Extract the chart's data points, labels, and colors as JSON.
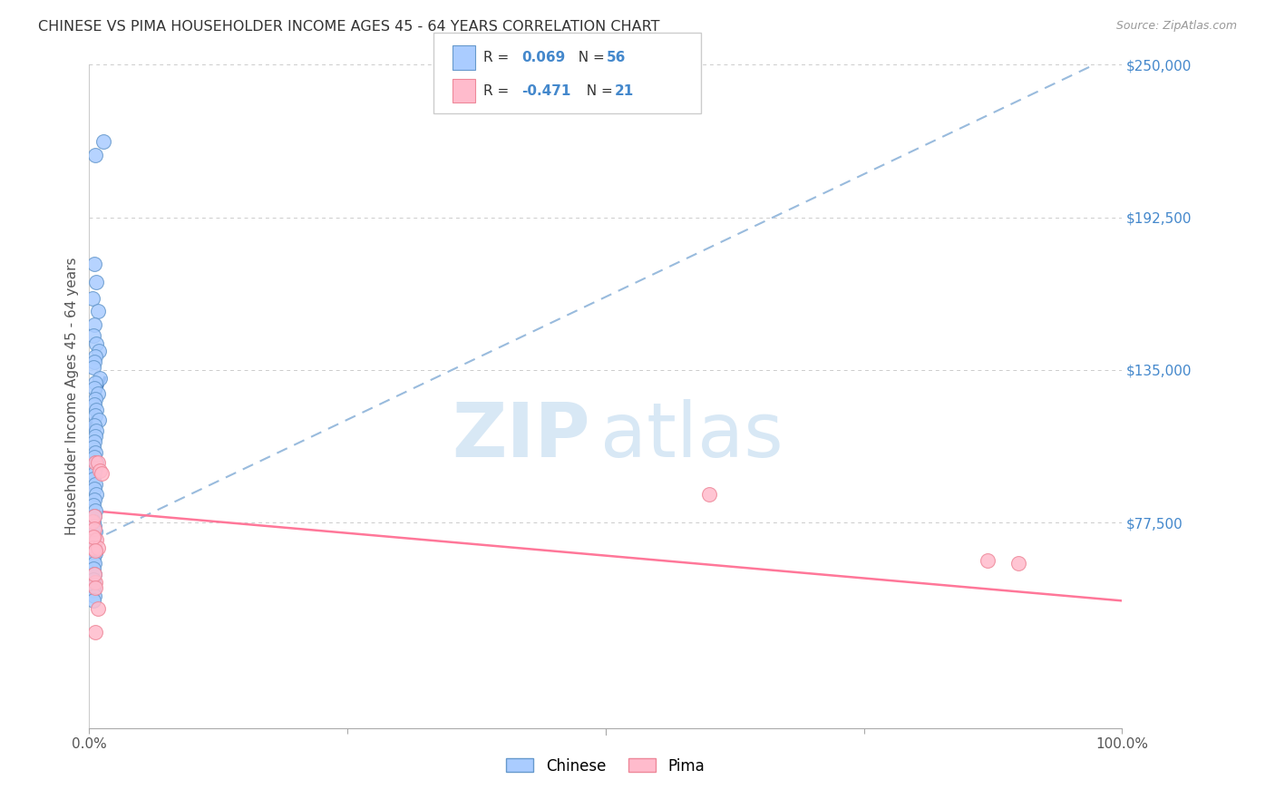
{
  "title": "CHINESE VS PIMA HOUSEHOLDER INCOME AGES 45 - 64 YEARS CORRELATION CHART",
  "source": "Source: ZipAtlas.com",
  "ylabel": "Householder Income Ages 45 - 64 years",
  "xlim": [
    0,
    1.0
  ],
  "ylim": [
    0,
    250000
  ],
  "background_color": "#ffffff",
  "grid_color": "#cccccc",
  "chinese_color": "#aaccff",
  "chinese_edge_color": "#6699cc",
  "pima_color": "#ffbbcc",
  "pima_edge_color": "#ee8899",
  "blue_solid_color": "#4477bb",
  "blue_dashed_color": "#99bbdd",
  "pink_line_color": "#ff7799",
  "ytick_color": "#4488cc",
  "xtick_color": "#555555",
  "legend_R_color": "#4488cc",
  "legend_text_color": "#333333",
  "chinese_x": [
    0.006,
    0.014,
    0.005,
    0.007,
    0.003,
    0.008,
    0.005,
    0.004,
    0.007,
    0.009,
    0.006,
    0.005,
    0.004,
    0.01,
    0.006,
    0.005,
    0.008,
    0.006,
    0.005,
    0.007,
    0.006,
    0.009,
    0.005,
    0.007,
    0.006,
    0.005,
    0.004,
    0.006,
    0.005,
    0.007,
    0.006,
    0.005,
    0.004,
    0.006,
    0.005,
    0.007,
    0.005,
    0.004,
    0.006,
    0.005,
    0.004,
    0.005,
    0.006,
    0.005,
    0.004,
    0.005,
    0.006,
    0.004,
    0.005,
    0.004,
    0.005,
    0.004,
    0.005,
    0.004,
    0.005,
    0.004
  ],
  "chinese_y": [
    216000,
    221000,
    175000,
    168000,
    162000,
    157000,
    152000,
    148000,
    145000,
    142000,
    140000,
    138000,
    136000,
    132000,
    130000,
    128000,
    126000,
    124000,
    122000,
    120000,
    118000,
    116000,
    114000,
    112000,
    110000,
    108000,
    106000,
    104000,
    102000,
    100000,
    98000,
    96000,
    94000,
    92000,
    90000,
    88000,
    86000,
    84000,
    82000,
    80000,
    78000,
    76000,
    74000,
    72000,
    70000,
    68000,
    66000,
    64000,
    62000,
    60000,
    58000,
    56000,
    54000,
    52000,
    50000,
    48000
  ],
  "pima_x": [
    0.003,
    0.005,
    0.004,
    0.006,
    0.008,
    0.01,
    0.012,
    0.005,
    0.007,
    0.003,
    0.006,
    0.008,
    0.004,
    0.006,
    0.005,
    0.006,
    0.008,
    0.006,
    0.6,
    0.87,
    0.9
  ],
  "pima_y": [
    78000,
    80000,
    72000,
    100000,
    100000,
    97000,
    96000,
    75000,
    71000,
    68000,
    55000,
    68000,
    72000,
    67000,
    58000,
    53000,
    45000,
    36000,
    88000,
    63000,
    62000
  ]
}
